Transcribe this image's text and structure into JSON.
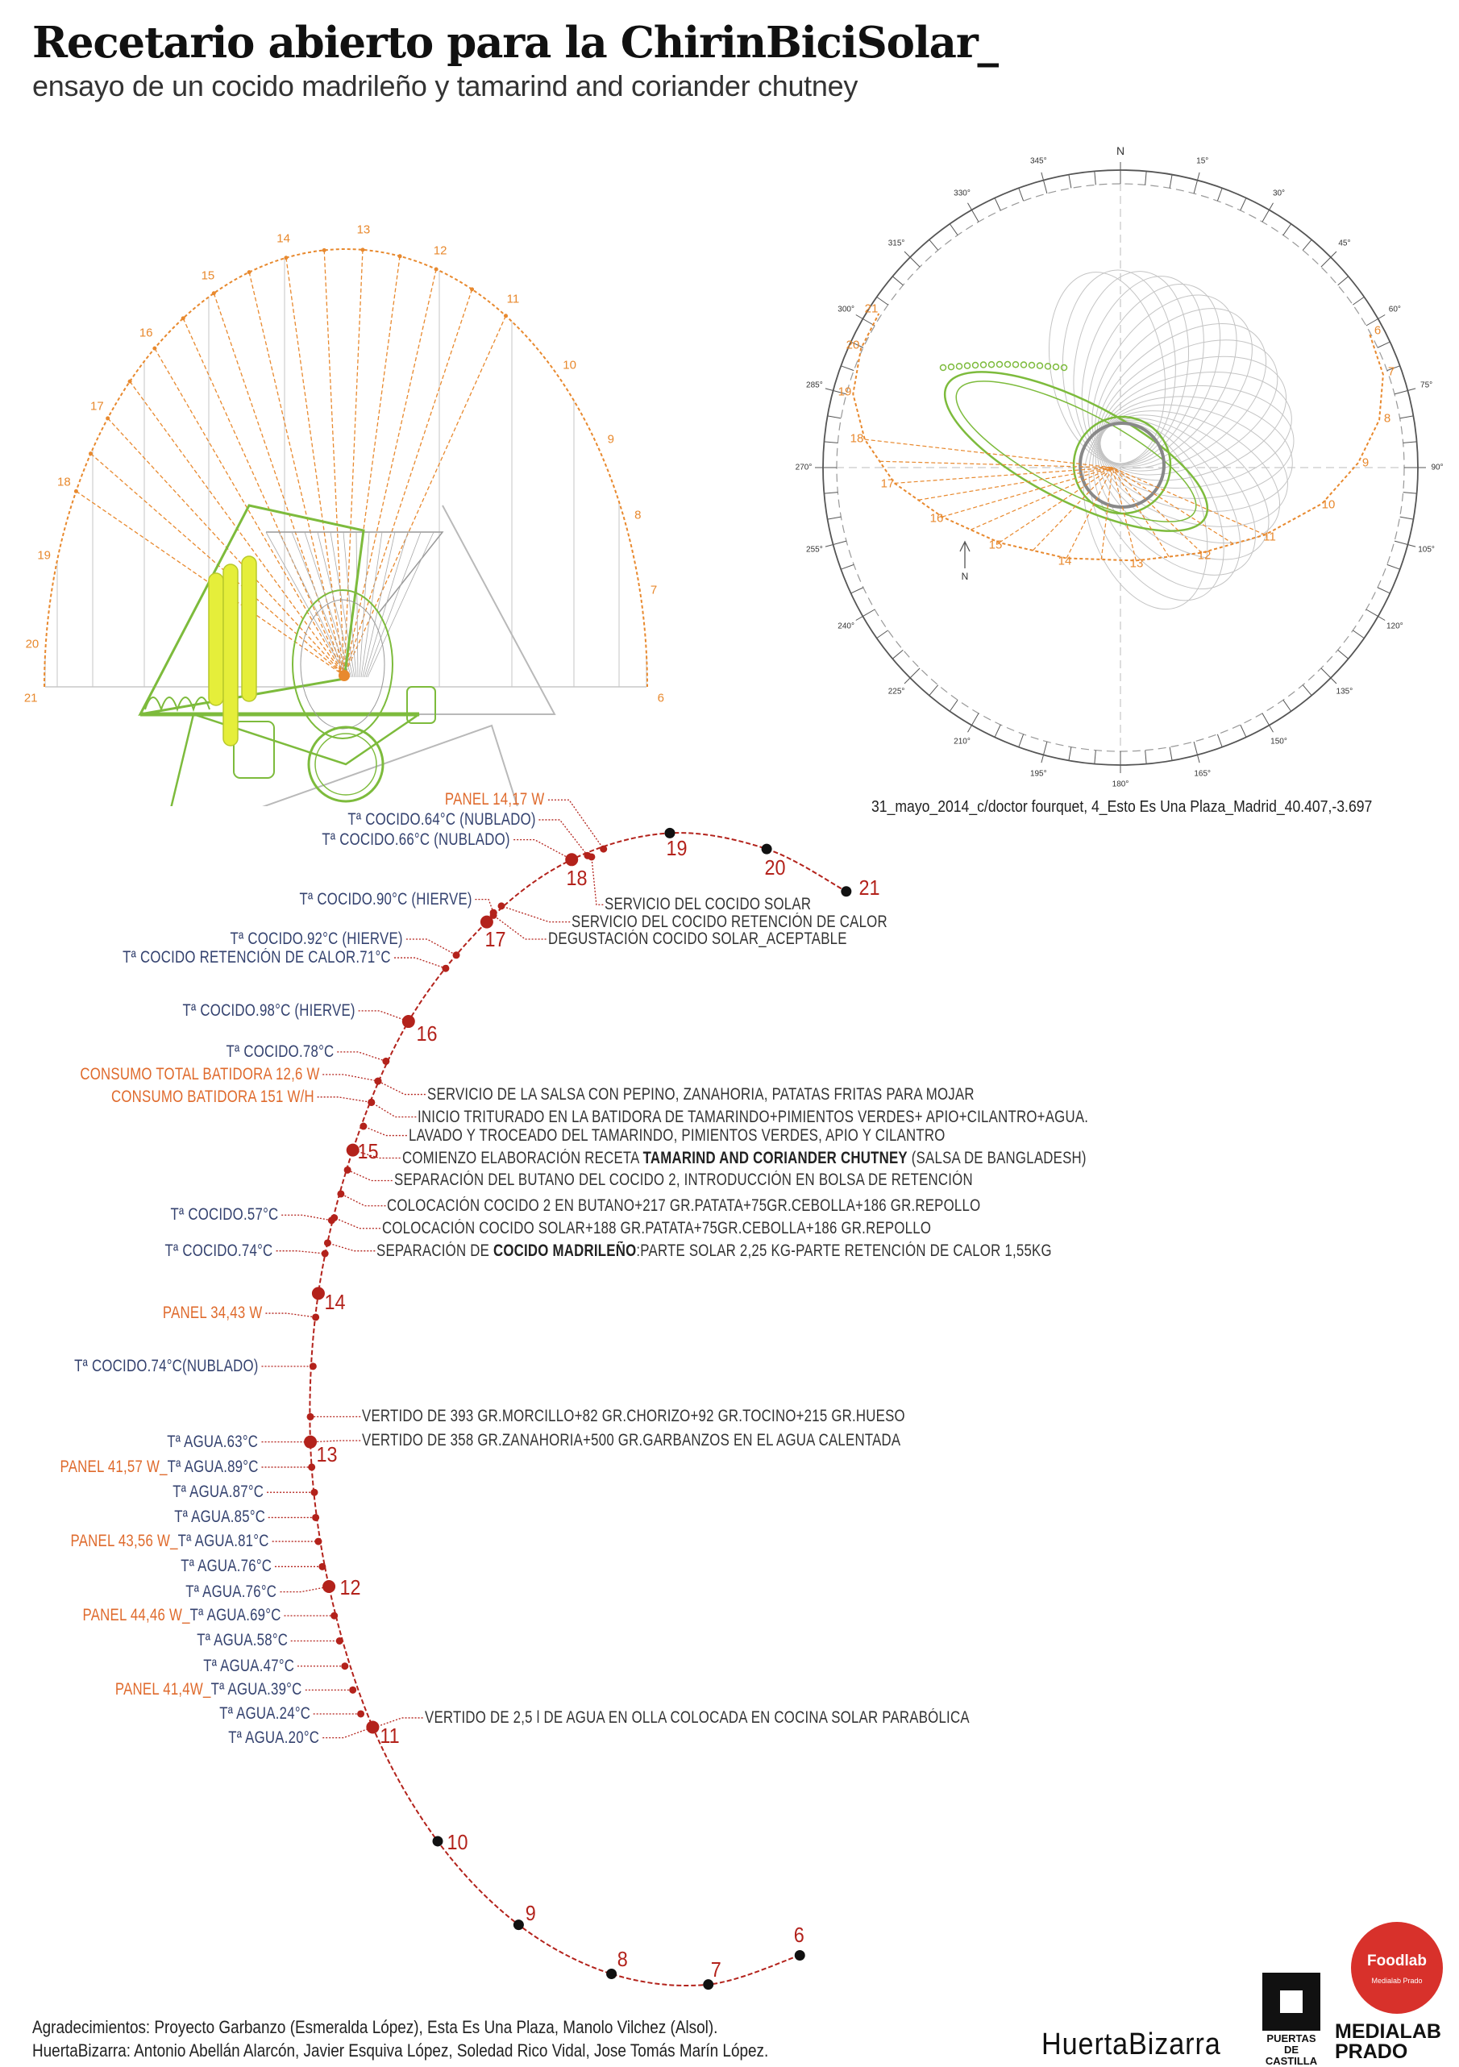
{
  "header": {
    "title": "Recetario abierto para la ChirinBiciSolar_",
    "subtitle": "ensayo de un cocido madrileño y tamarind and coriander chutney"
  },
  "colors": {
    "sun_path": "#e8892e",
    "machine": "#7dbb3c",
    "frame": "#b9b9b9",
    "timeline": "#b3221b",
    "temperature_text": "#34426f",
    "power_text": "#df6a2c",
    "plants": "#e5ee3a"
  },
  "sun_elevation_diagram": {
    "hour_labels": [
      "6",
      "7",
      "8",
      "9",
      "10",
      "11",
      "12",
      "13",
      "14",
      "15",
      "16",
      "17",
      "18",
      "19",
      "20",
      "21"
    ]
  },
  "sun_path_compass": {
    "degree_labels": [
      "N",
      "15°",
      "30°",
      "45°",
      "60°",
      "75°",
      "90°",
      "105°",
      "120°",
      "135°",
      "150°",
      "165°",
      "180°",
      "195°",
      "210°",
      "225°",
      "240°",
      "255°",
      "270°",
      "285°",
      "300°",
      "315°",
      "330°",
      "345°"
    ],
    "hour_labels": [
      "6",
      "7",
      "8",
      "9",
      "10",
      "11",
      "12",
      "13",
      "14",
      "15",
      "16",
      "17",
      "18",
      "19",
      "20",
      "21"
    ],
    "north_arrow_label": "N"
  },
  "location_caption": "31_mayo_2014_c/doctor fourquet, 4_Esto Es Una Plaza_Madrid_40.407,-3.697",
  "timeline": {
    "hours": [
      "6",
      "7",
      "8",
      "9",
      "10",
      "11",
      "12",
      "13",
      "14",
      "15",
      "16",
      "17",
      "18",
      "19",
      "20",
      "21"
    ],
    "left_events": [
      {
        "parts": [
          {
            "text": "PANEL 14,17 W",
            "type": "power"
          }
        ]
      },
      {
        "parts": [
          {
            "text": "Tª COCIDO.64°C (NUBLADO)",
            "type": "temp"
          }
        ]
      },
      {
        "parts": [
          {
            "text": "Tª COCIDO.66°C (NUBLADO)",
            "type": "temp"
          }
        ]
      },
      {
        "parts": [
          {
            "text": "Tª COCIDO.90°C (HIERVE)",
            "type": "temp"
          }
        ]
      },
      {
        "parts": [
          {
            "text": "Tª COCIDO.92°C (HIERVE)",
            "type": "temp"
          }
        ]
      },
      {
        "parts": [
          {
            "text": "Tª COCIDO RETENCIÓN DE CALOR.71°C",
            "type": "temp"
          }
        ]
      },
      {
        "parts": [
          {
            "text": "Tª COCIDO.98°C (HIERVE)",
            "type": "temp"
          }
        ]
      },
      {
        "parts": [
          {
            "text": "Tª COCIDO.78°C",
            "type": "temp"
          }
        ]
      },
      {
        "parts": [
          {
            "text": "CONSUMO TOTAL BATIDORA 12,6 W",
            "type": "power"
          }
        ]
      },
      {
        "parts": [
          {
            "text": "CONSUMO BATIDORA 151 W/H",
            "type": "power"
          }
        ]
      },
      {
        "parts": [
          {
            "text": "Tª COCIDO.57°C",
            "type": "temp"
          }
        ]
      },
      {
        "parts": [
          {
            "text": "Tª COCIDO.74°C",
            "type": "temp"
          }
        ]
      },
      {
        "parts": [
          {
            "text": "PANEL 34,43 W",
            "type": "power"
          }
        ]
      },
      {
        "parts": [
          {
            "text": "Tª COCIDO.74°C(NUBLADO)",
            "type": "temp"
          }
        ]
      },
      {
        "parts": [
          {
            "text": "Tª AGUA.63°C",
            "type": "temp"
          }
        ]
      },
      {
        "parts": [
          {
            "text": "PANEL 41,57 W_",
            "type": "power"
          },
          {
            "text": "Tª AGUA.89°C",
            "type": "temp"
          }
        ]
      },
      {
        "parts": [
          {
            "text": "Tª AGUA.87°C",
            "type": "temp"
          }
        ]
      },
      {
        "parts": [
          {
            "text": "Tª AGUA.85°C",
            "type": "temp"
          }
        ]
      },
      {
        "parts": [
          {
            "text": "PANEL 43,56 W_",
            "type": "power"
          },
          {
            "text": "Tª AGUA.81°C",
            "type": "temp"
          }
        ]
      },
      {
        "parts": [
          {
            "text": "Tª AGUA.76°C",
            "type": "temp"
          }
        ]
      },
      {
        "parts": [
          {
            "text": "Tª AGUA.76°C",
            "type": "temp"
          }
        ]
      },
      {
        "parts": [
          {
            "text": "PANEL 44,46 W_",
            "type": "power"
          },
          {
            "text": "Tª AGUA.69°C",
            "type": "temp"
          }
        ]
      },
      {
        "parts": [
          {
            "text": "Tª AGUA.58°C",
            "type": "temp"
          }
        ]
      },
      {
        "parts": [
          {
            "text": "Tª AGUA.47°C",
            "type": "temp"
          }
        ]
      },
      {
        "parts": [
          {
            "text": "PANEL 41,4W_",
            "type": "power"
          },
          {
            "text": "Tª AGUA.39°C",
            "type": "temp"
          }
        ]
      },
      {
        "parts": [
          {
            "text": "Tª AGUA.24°C",
            "type": "temp"
          }
        ]
      },
      {
        "parts": [
          {
            "text": "Tª AGUA.20°C",
            "type": "temp"
          }
        ]
      }
    ],
    "right_events": [
      {
        "parts": [
          {
            "text": "SERVICIO DEL COCIDO SOLAR",
            "type": "plain"
          }
        ]
      },
      {
        "parts": [
          {
            "text": "SERVICIO DEL COCIDO RETENCIÓN DE CALOR",
            "type": "plain"
          }
        ]
      },
      {
        "parts": [
          {
            "text": "DEGUSTACIÓN COCIDO SOLAR_ACEPTABLE",
            "type": "plain"
          }
        ]
      },
      {
        "parts": [
          {
            "text": "SERVICIO DE LA SALSA CON PEPINO, ZANAHORIA, PATATAS FRITAS PARA MOJAR",
            "type": "plain"
          }
        ]
      },
      {
        "parts": [
          {
            "text": "INICIO TRITURADO EN LA BATIDORA DE TAMARINDO+PIMIENTOS VERDES+ APIO+CILANTRO+AGUA.",
            "type": "plain"
          }
        ]
      },
      {
        "parts": [
          {
            "text": "LAVADO Y TROCEADO DEL TAMARINDO, PIMIENTOS VERDES, APIO Y CILANTRO",
            "type": "plain"
          }
        ]
      },
      {
        "parts": [
          {
            "text": "COMIENZO ELABORACIÓN RECETA ",
            "type": "plain"
          },
          {
            "text": "TAMARIND AND CORIANDER CHUTNEY",
            "type": "bold"
          },
          {
            "text": " (SALSA DE BANGLADESH)",
            "type": "plain"
          }
        ]
      },
      {
        "parts": [
          {
            "text": "SEPARACIÓN DEL BUTANO DEL COCIDO 2, INTRODUCCIÓN EN BOLSA DE RETENCIÓN",
            "type": "plain"
          }
        ]
      },
      {
        "parts": [
          {
            "text": "COLOCACIÓN COCIDO 2 EN BUTANO+217 GR.PATATA+75GR.CEBOLLA+186 GR.REPOLLO",
            "type": "plain"
          }
        ]
      },
      {
        "parts": [
          {
            "text": "COLOCACIÓN COCIDO SOLAR+188 GR.PATATA+75GR.CEBOLLA+186 GR.REPOLLO",
            "type": "plain"
          }
        ]
      },
      {
        "parts": [
          {
            "text": "SEPARACIÓN DE ",
            "type": "plain"
          },
          {
            "text": "COCIDO MADRILEÑO",
            "type": "bold"
          },
          {
            "text": ":PARTE SOLAR 2,25 KG-PARTE RETENCIÓN DE CALOR 1,55KG",
            "type": "plain"
          }
        ]
      },
      {
        "parts": [
          {
            "text": "VERTIDO DE 393 GR.MORCILLO+82 GR.CHORIZO+92 GR.TOCINO+215 GR.HUESO",
            "type": "plain"
          }
        ]
      },
      {
        "parts": [
          {
            "text": "VERTIDO DE 358 GR.ZANAHORIA+500 GR.GARBANZOS EN EL AGUA CALENTADA",
            "type": "plain"
          }
        ]
      },
      {
        "parts": [
          {
            "text": "VERTIDO DE 2,5 l DE AGUA EN OLLA COLOCADA EN COCINA SOLAR PARABÓLICA",
            "type": "plain"
          }
        ]
      }
    ]
  },
  "footer": {
    "credits_line1": "Agradecimientos: Proyecto Garbanzo (Esmeralda López), Esta Es Una Plaza, Manolo Vilchez (Alsol).",
    "credits_line2": "HuertaBizarra: Antonio Abellán Alarcón, Javier Esquiva López, Soledad Rico Vidal, Jose Tomás Marín López.",
    "logos": {
      "huertabizarra": "HuertaBizarra",
      "puertas_de_castilla": "PUERTAS DE CASTILLA",
      "medialab_line1": "MEDIALAB",
      "medialab_line2": "PRADO",
      "foodlab": "Foodlab",
      "foodlab_sub": "Medialab Prado"
    }
  }
}
